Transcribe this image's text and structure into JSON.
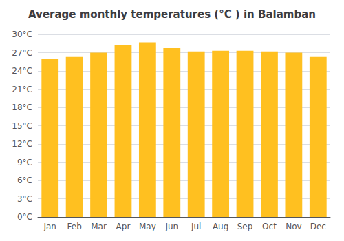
{
  "chart_data": {
    "type": "bar",
    "title": "Average monthly temperatures (°C ) in Balamban",
    "categories": [
      "Jan",
      "Feb",
      "Mar",
      "Apr",
      "May",
      "Jun",
      "Jul",
      "Aug",
      "Sep",
      "Oct",
      "Nov",
      "Dec"
    ],
    "values": [
      26.0,
      26.3,
      27.0,
      28.3,
      28.7,
      27.8,
      27.2,
      27.3,
      27.3,
      27.2,
      27.0,
      26.3
    ],
    "color": "#FFC020",
    "ylim": [
      0,
      30
    ],
    "yticks": [
      {
        "value": 0,
        "label": "0°C"
      },
      {
        "value": 3,
        "label": "3°C"
      },
      {
        "value": 6,
        "label": "6°C"
      },
      {
        "value": 9,
        "label": "9°C"
      },
      {
        "value": 12,
        "label": "12°C"
      },
      {
        "value": 15,
        "label": "15°C"
      },
      {
        "value": 18,
        "label": "18°C"
      },
      {
        "value": 21,
        "label": "21°C"
      },
      {
        "value": 24,
        "label": "24°C"
      },
      {
        "value": 27,
        "label": "27°C"
      },
      {
        "value": 30,
        "label": "30°C"
      }
    ],
    "grid": true
  }
}
